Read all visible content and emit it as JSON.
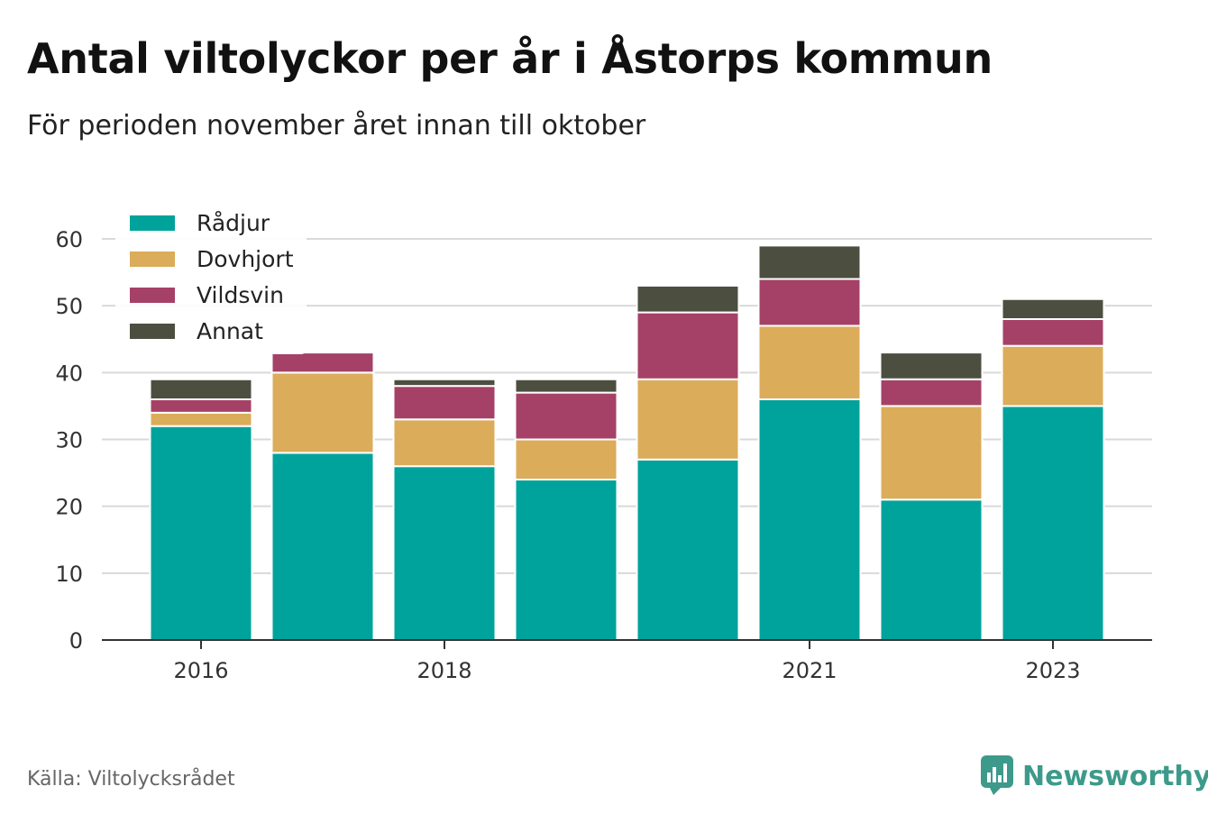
{
  "title": "Antal viltolyckor per år i Åstorps kommun",
  "subtitle": "För perioden november året innan till oktober",
  "source": "Källa: Viltolycksrådet",
  "brand": {
    "name": "Newsworthy",
    "icon": "newsworthy-logo-icon",
    "color": "#3d9a8b"
  },
  "chart_data": {
    "type": "bar",
    "stacked": true,
    "x": [
      2016,
      2017,
      2018,
      2019,
      2020,
      2021,
      2022,
      2023
    ],
    "x_tick_labels": [
      {
        "x": 2016,
        "label": "2016"
      },
      {
        "x": 2018,
        "label": "2018"
      },
      {
        "x": 2021,
        "label": "2021"
      },
      {
        "x": 2023,
        "label": "2023"
      }
    ],
    "series": [
      {
        "name": "Rådjur",
        "color": "#00a39b",
        "values": [
          32,
          28,
          26,
          24,
          27,
          36,
          21,
          35
        ]
      },
      {
        "name": "Dovhjort",
        "color": "#dbac5a",
        "values": [
          2,
          12,
          7,
          6,
          12,
          11,
          14,
          9
        ]
      },
      {
        "name": "Vildsvin",
        "color": "#a54167",
        "values": [
          2,
          3,
          5,
          7,
          10,
          7,
          4,
          4
        ]
      },
      {
        "name": "Annat",
        "color": "#4c4f40",
        "values": [
          3,
          0,
          1,
          2,
          4,
          5,
          4,
          3
        ]
      }
    ],
    "ylim": [
      0,
      60
    ],
    "yticks": [
      0,
      10,
      20,
      30,
      40,
      50,
      60
    ],
    "grid": true,
    "legend_position": "top-left"
  }
}
